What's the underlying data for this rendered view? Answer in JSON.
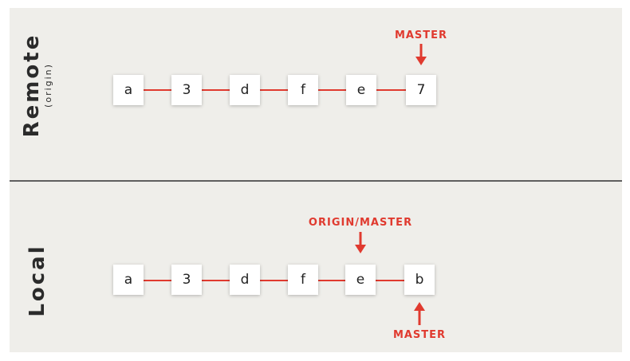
{
  "remote": {
    "title": "Remote",
    "subtitle": "(origin)",
    "commits": [
      "a",
      "3",
      "d",
      "f",
      "e",
      "7"
    ],
    "master_label": "MASTER"
  },
  "local": {
    "title": "Local",
    "commits": [
      "a",
      "3",
      "d",
      "f",
      "e",
      "b"
    ],
    "origin_master_label": "ORIGIN/MASTER",
    "master_label": "MASTER"
  },
  "colors": {
    "accent": "#e03a2f",
    "panel_bg": "#efeeea",
    "divider": "#5f5f5f",
    "text": "#222222"
  }
}
